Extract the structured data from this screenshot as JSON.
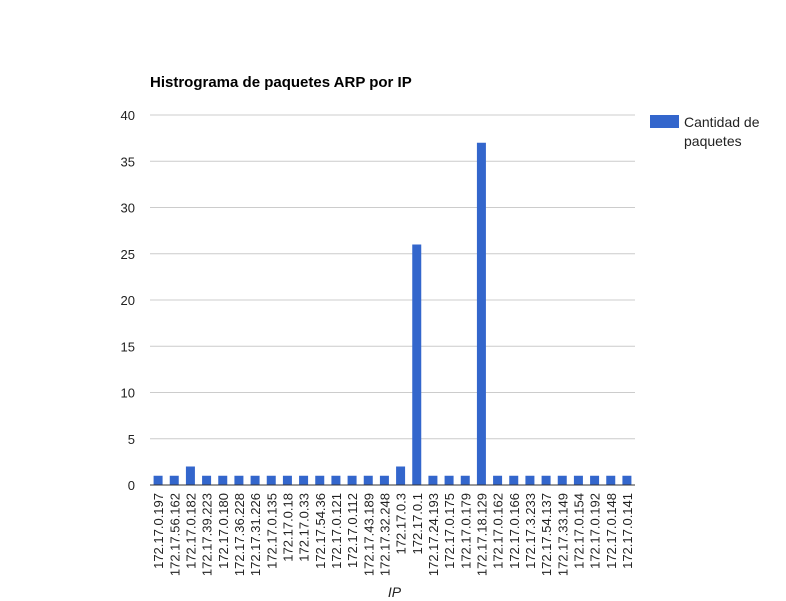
{
  "chart_data": {
    "type": "bar",
    "title": "Histrograma de paquetes ARP por IP",
    "xlabel": "IP",
    "ylabel": "",
    "ylim": [
      0,
      40
    ],
    "yticks": [
      0,
      5,
      10,
      15,
      20,
      25,
      30,
      35,
      40
    ],
    "grid": true,
    "legend_position": "right",
    "bar_color": "#3366cc",
    "categories": [
      "172.17.0.197",
      "172.17.56.162",
      "172.17.0.182",
      "172.17.39.223",
      "172.17.0.180",
      "172.17.36.228",
      "172.17.31.226",
      "172.17.0.135",
      "172.17.0.18",
      "172.17.0.33",
      "172.17.54.36",
      "172.17.0.121",
      "172.17.0.112",
      "172.17.43.189",
      "172.17.32.248",
      "172.17.0.3",
      "172.17.0.1",
      "172.17.24.193",
      "172.17.0.175",
      "172.17.0.179",
      "172.17.18.129",
      "172.17.0.162",
      "172.17.0.166",
      "172.17.3.233",
      "172.17.54.137",
      "172.17.33.149",
      "172.17.0.154",
      "172.17.0.192",
      "172.17.0.148",
      "172.17.0.141"
    ],
    "series": [
      {
        "name": "Cantidad de paquetes",
        "values": [
          1,
          1,
          2,
          1,
          1,
          1,
          1,
          1,
          1,
          1,
          1,
          1,
          1,
          1,
          1,
          2,
          26,
          1,
          1,
          1,
          37,
          1,
          1,
          1,
          1,
          1,
          1,
          1,
          1,
          1
        ]
      }
    ]
  }
}
